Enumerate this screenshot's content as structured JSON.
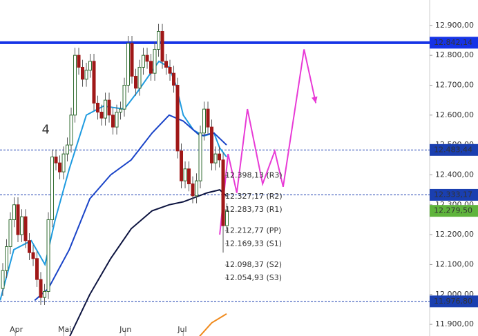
{
  "chart_data": {
    "type": "candlestick",
    "open": [
      12020,
      12080,
      12160,
      12250,
      12300,
      12200,
      12260,
      12180,
      12140,
      12120,
      12050,
      11990,
      12010,
      12250,
      12460,
      12440,
      12410,
      12470,
      12500,
      12600,
      12800,
      12760,
      12720,
      12750,
      12780,
      12640,
      12610,
      12590,
      12650,
      12600,
      12560,
      12610,
      12620,
      12700,
      12840,
      12730,
      12690,
      12760,
      12800,
      12780,
      12740,
      12820,
      12880,
      12780,
      12760,
      12740,
      12700,
      12480,
      12380,
      12420,
      12370,
      12330,
      12380,
      12540,
      12620,
      12560,
      12440,
      12470,
      12450,
      12230
    ],
    "high": [
      12105,
      12185,
      12275,
      12325,
      12325,
      12285,
      12285,
      12205,
      12165,
      12145,
      12075,
      12035,
      12275,
      12485,
      12485,
      12465,
      12495,
      12525,
      12625,
      12825,
      12825,
      12785,
      12775,
      12805,
      12805,
      12665,
      12635,
      12675,
      12675,
      12625,
      12635,
      12645,
      12725,
      12865,
      12865,
      12755,
      12785,
      12825,
      12825,
      12805,
      12845,
      12905,
      12905,
      12805,
      12785,
      12765,
      12725,
      12505,
      12445,
      12445,
      12395,
      12405,
      12565,
      12645,
      12645,
      12585,
      12495,
      12495,
      12475,
      12305
    ],
    "low": [
      11995,
      12055,
      12135,
      12225,
      12175,
      12175,
      12155,
      12115,
      12095,
      12025,
      11965,
      11965,
      11985,
      12225,
      12415,
      12385,
      12385,
      12445,
      12475,
      12575,
      12735,
      12695,
      12695,
      12725,
      12615,
      12585,
      12565,
      12565,
      12575,
      12535,
      12535,
      12585,
      12595,
      12675,
      12705,
      12665,
      12665,
      12735,
      12755,
      12715,
      12715,
      12795,
      12755,
      12735,
      12715,
      12675,
      12455,
      12355,
      12355,
      12345,
      12305,
      12305,
      12355,
      12515,
      12535,
      12415,
      12415,
      12425,
      12140,
      12205
    ],
    "close": [
      12080,
      12160,
      12250,
      12300,
      12200,
      12260,
      12180,
      12140,
      12120,
      12050,
      11990,
      12010,
      12250,
      12460,
      12440,
      12410,
      12470,
      12500,
      12600,
      12800,
      12760,
      12720,
      12750,
      12780,
      12640,
      12610,
      12590,
      12650,
      12600,
      12560,
      12610,
      12620,
      12700,
      12840,
      12730,
      12690,
      12760,
      12800,
      12780,
      12740,
      12820,
      12880,
      12780,
      12760,
      12740,
      12700,
      12480,
      12380,
      12420,
      12370,
      12330,
      12380,
      12540,
      12620,
      12560,
      12440,
      12470,
      12450,
      12230,
      12280
    ],
    "up_color": "#2f6b2f",
    "down_color": "#a01818",
    "lines": [
      {
        "color": "#1e9be0",
        "x": [
          -0.7,
          2.9,
          7.5,
          11.1,
          13.8,
          17.5,
          22,
          26.5,
          32,
          35.6,
          41.1,
          43.8,
          45.6,
          47.5,
          50.2,
          52.9,
          55.6,
          57.1,
          58.9
        ],
        "values": [
          11980,
          12150,
          12180,
          12100,
          12250,
          12420,
          12600,
          12630,
          12620,
          12680,
          12780,
          12760,
          12700,
          12600,
          12550,
          12530,
          12540,
          12490,
          12460
        ]
      },
      {
        "color": "#1a44c8",
        "x": [
          8.4,
          12,
          17.5,
          22.9,
          28.4,
          33.8,
          39.3,
          43.8,
          47.5,
          52,
          55.6,
          58.9
        ],
        "values": [
          11980,
          12020,
          12150,
          12320,
          12400,
          12450,
          12540,
          12600,
          12580,
          12530,
          12540,
          12500
        ]
      },
      {
        "color": "#0d1440",
        "x": [
          16.5,
          22.9,
          28.4,
          33.8,
          39.3,
          43.8,
          47.5,
          53.8,
          57.1,
          58.9
        ],
        "values": [
          11830,
          12000,
          12120,
          12220,
          12280,
          12300,
          12310,
          12340,
          12350,
          12330
        ]
      },
      {
        "color": "#f08a1c",
        "x": [
          51.1,
          55,
          58.9
        ],
        "values": [
          11850,
          11905,
          11935
        ]
      },
      {
        "color": "#e83ad6",
        "x": [
          57.1,
          59.3,
          61.6,
          64.4,
          68.4,
          71.6,
          73.8,
          79.3,
          82.4
        ],
        "values": [
          12200,
          12470,
          12340,
          12620,
          12370,
          12480,
          12360,
          12820,
          12640
        ]
      }
    ],
    "xlim": [
      -0.73,
      112.36
    ],
    "ylim": [
      11861,
      12985
    ],
    "xticks": [
      {
        "value": 3.3,
        "label": "Apr"
      },
      {
        "value": 16,
        "label": "Mai"
      },
      {
        "value": 32.2,
        "label": "Jun"
      },
      {
        "value": 47.5,
        "label": "Jul"
      }
    ],
    "yticks": [
      {
        "value": 12900,
        "label": "12.900,00"
      },
      {
        "value": 12800,
        "label": "12.800,00"
      },
      {
        "value": 12700,
        "label": "12.700,00"
      },
      {
        "value": 12600,
        "label": "12.600,00"
      },
      {
        "value": 12500,
        "label": "12.500,00"
      },
      {
        "value": 12400,
        "label": "12.400,00"
      },
      {
        "value": 12300,
        "label": "12.300,00"
      },
      {
        "value": 12200,
        "label": "12.200,00"
      },
      {
        "value": 12100,
        "label": "12.100,00"
      },
      {
        "value": 12000,
        "label": "12.000,00"
      },
      {
        "value": 11900,
        "label": "11.900,00"
      }
    ],
    "levels": [
      {
        "value": 12842.14,
        "label": "12.842,14",
        "color": "#1533e6",
        "style": "solid"
      },
      {
        "value": 12483.44,
        "label": "12.483,44",
        "color": "#1a3fb0",
        "style": "dashed"
      },
      {
        "value": 12333.17,
        "label": "12.333,17",
        "color": "#1a3fb0",
        "style": "dashed"
      },
      {
        "value": 11976.8,
        "label": "11.976,80",
        "color": "#1a3fb0",
        "style": "dashed"
      },
      {
        "value": 12279.5,
        "label": "12.279,50",
        "color": "#5fb43c",
        "style": "none"
      }
    ],
    "pivots": [
      {
        "value": 12398.13,
        "label": "12.398,13 (R3)"
      },
      {
        "value": 12327.17,
        "label": "12.327,17 (R2)"
      },
      {
        "value": 12283.73,
        "label": "12.283,73 (R1)"
      },
      {
        "value": 12212.77,
        "label": "12.212,77 (PP)"
      },
      {
        "value": 12169.33,
        "label": "12.169,33 (S1)"
      },
      {
        "value": 12098.37,
        "label": "12.098,37 (S2)"
      },
      {
        "value": 12054.93,
        "label": "12.054,93 (S3)"
      }
    ],
    "annotations": [
      {
        "text": "4",
        "x": 11.3,
        "y": 12550
      }
    ]
  }
}
